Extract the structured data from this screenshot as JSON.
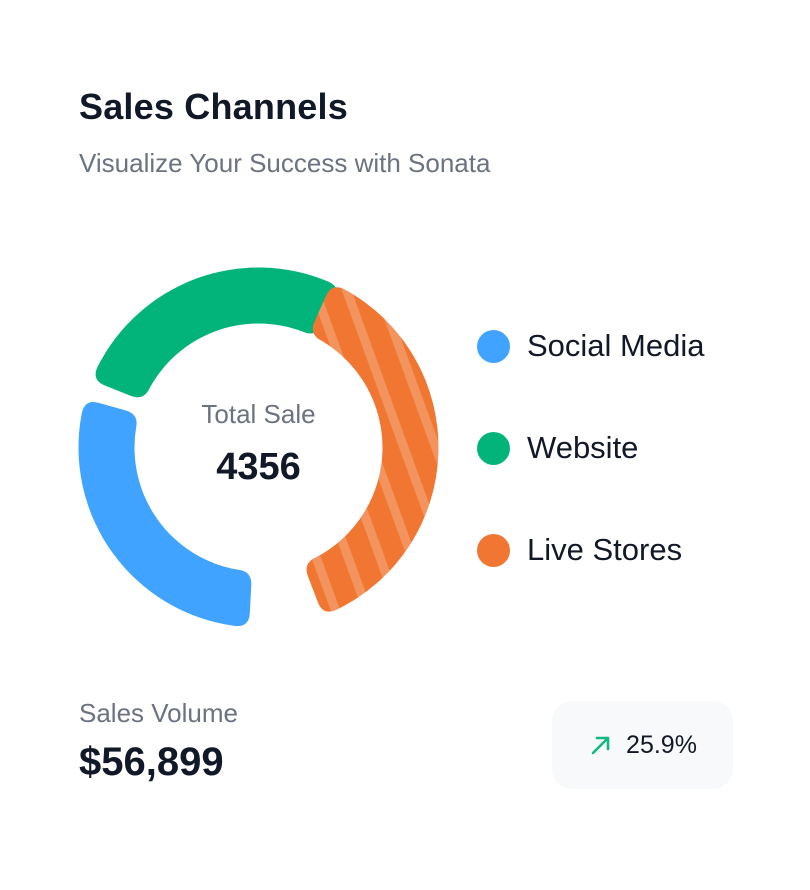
{
  "card": {
    "title": "Sales Channels",
    "subtitle": "Visualize Your Success with Sonata"
  },
  "center": {
    "label": "Total Sale",
    "value": "4356"
  },
  "legend": [
    {
      "label": "Social Media",
      "color": "#3fa3ff"
    },
    {
      "label": "Website",
      "color": "#03b47a"
    },
    {
      "label": "Live Stores",
      "color": "#f07632"
    }
  ],
  "volume": {
    "label": "Sales Volume",
    "value": "$56,899"
  },
  "growth": {
    "icon": "arrow-up-right-icon",
    "value": "25.9%",
    "color": "#10b981"
  },
  "chart_data": {
    "type": "pie",
    "categories": [
      "Social Media",
      "Website",
      "Live Stores"
    ],
    "values": [
      31,
      29,
      40
    ],
    "colors": [
      "#3fa3ff",
      "#03b47a",
      "#f07632"
    ],
    "total_label": "Total Sale",
    "total": 4356,
    "legend": "right",
    "style": "donut"
  }
}
